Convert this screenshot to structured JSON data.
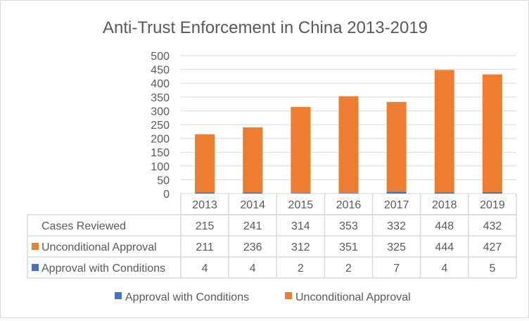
{
  "chart_data": {
    "type": "bar",
    "stacked": true,
    "title": "Anti-Trust Enforcement in China 2013-2019",
    "xlabel": "",
    "ylabel": "",
    "ylim": [
      0,
      500
    ],
    "yticks": [
      0,
      50,
      100,
      150,
      200,
      250,
      300,
      350,
      400,
      450,
      500
    ],
    "grid": true,
    "categories": [
      "2013",
      "2014",
      "2015",
      "2016",
      "2017",
      "2018",
      "2019"
    ],
    "series": [
      {
        "name": "Approval with Conditions",
        "color": "#4472c4",
        "values": [
          4,
          4,
          2,
          2,
          7,
          4,
          5
        ]
      },
      {
        "name": "Unconditional Approval",
        "color": "#ed7d31",
        "values": [
          211,
          236,
          312,
          351,
          325,
          444,
          427
        ]
      }
    ],
    "data_table": {
      "rows": [
        {
          "label": "Cases Reviewed",
          "values": [
            215,
            241,
            314,
            353,
            332,
            448,
            432
          ]
        },
        {
          "label": "Unconditional Approval",
          "color": "#ed7d31",
          "values": [
            211,
            236,
            312,
            351,
            325,
            444,
            427
          ]
        },
        {
          "label": "Approval with Conditions",
          "color": "#4472c4",
          "values": [
            4,
            4,
            2,
            2,
            7,
            4,
            5
          ]
        }
      ]
    },
    "legend": {
      "placement": "bottom",
      "entries": [
        "Approval with Conditions",
        "Unconditional Approval"
      ]
    }
  }
}
